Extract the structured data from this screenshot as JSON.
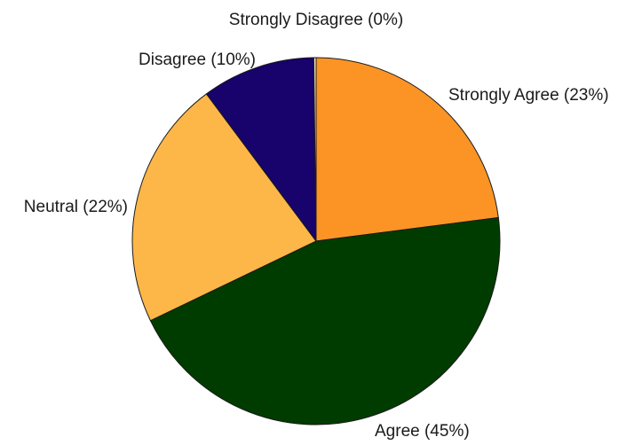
{
  "chart_data": {
    "type": "pie",
    "title": "",
    "start_angle_deg": 0,
    "direction": "clockwise",
    "slices": [
      {
        "name": "Strongly Agree",
        "label": "Strongly Agree (23%)",
        "value": 23,
        "color": "#fb9425"
      },
      {
        "name": "Agree",
        "label": "Agree (45%)",
        "value": 45,
        "color": "#003c00"
      },
      {
        "name": "Neutral",
        "label": "Neutral (22%)",
        "value": 22,
        "color": "#fdb749"
      },
      {
        "name": "Disagree",
        "label": "Disagree (10%)",
        "value": 10,
        "color": "#18026b"
      },
      {
        "name": "Strongly Disagree",
        "label": "Strongly Disagree (0%)",
        "value": 0.2,
        "color": "#f4f0c8"
      }
    ]
  }
}
